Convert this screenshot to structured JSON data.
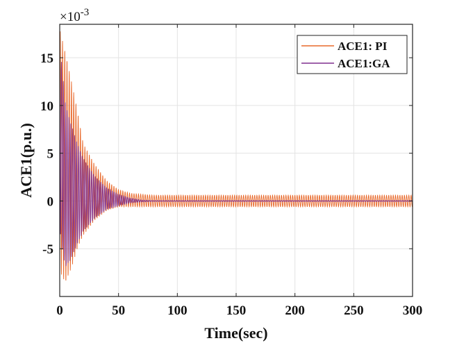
{
  "chart_data": {
    "type": "line",
    "xlabel": "Time(sec)",
    "ylabel": "ACE1(p.u.)",
    "y_multiplier": {
      "base": "×10",
      "exponent": "-3"
    },
    "xlim": [
      0,
      300
    ],
    "ylim": [
      -10,
      18.5
    ],
    "x_ticks": [
      "0",
      "50",
      "100",
      "150",
      "200",
      "250",
      "300"
    ],
    "x_tick_values": [
      0,
      50,
      100,
      150,
      200,
      250,
      300
    ],
    "y_ticks": [
      "-5",
      "0",
      "5",
      "10",
      "15"
    ],
    "y_tick_values": [
      -5,
      0,
      5,
      10,
      15
    ],
    "grid": true,
    "legend_position": "top-right",
    "series": [
      {
        "name": "ACE1: PI",
        "color": "#E8682A",
        "envelope": {
          "x": [
            0,
            2,
            5,
            10,
            15,
            20,
            30,
            40,
            50,
            60,
            80,
            100,
            150,
            200,
            250,
            300
          ],
          "upper": [
            18,
            17,
            15.5,
            12.5,
            9.5,
            6.0,
            3.8,
            2.1,
            1.2,
            0.8,
            0.6,
            0.6,
            0.6,
            0.6,
            0.6,
            0.6
          ],
          "lower": [
            -7,
            -8,
            -8.6,
            -7.0,
            -5.0,
            -3.6,
            -2.0,
            -1.0,
            -0.6,
            -0.6,
            -0.6,
            -0.6,
            -0.6,
            -0.6,
            -0.6,
            -0.6
          ]
        }
      },
      {
        "name": "ACE1:GA",
        "color": "#7E2F8E",
        "envelope": {
          "x": [
            0,
            2,
            5,
            10,
            15,
            20,
            30,
            40,
            50,
            60,
            70,
            80,
            100,
            150,
            200,
            250,
            300
          ],
          "upper": [
            16,
            14,
            10,
            8.0,
            6.0,
            4.5,
            2.6,
            1.4,
            0.7,
            0.3,
            0.1,
            0.05,
            0.05,
            0.05,
            0.05,
            0.05,
            0.05
          ],
          "lower": [
            -3,
            -5,
            -7.0,
            -6.0,
            -4.5,
            -3.2,
            -1.8,
            -0.9,
            -0.5,
            -0.2,
            -0.1,
            -0.05,
            -0.05,
            -0.05,
            -0.05,
            -0.05,
            -0.05
          ]
        }
      }
    ]
  }
}
